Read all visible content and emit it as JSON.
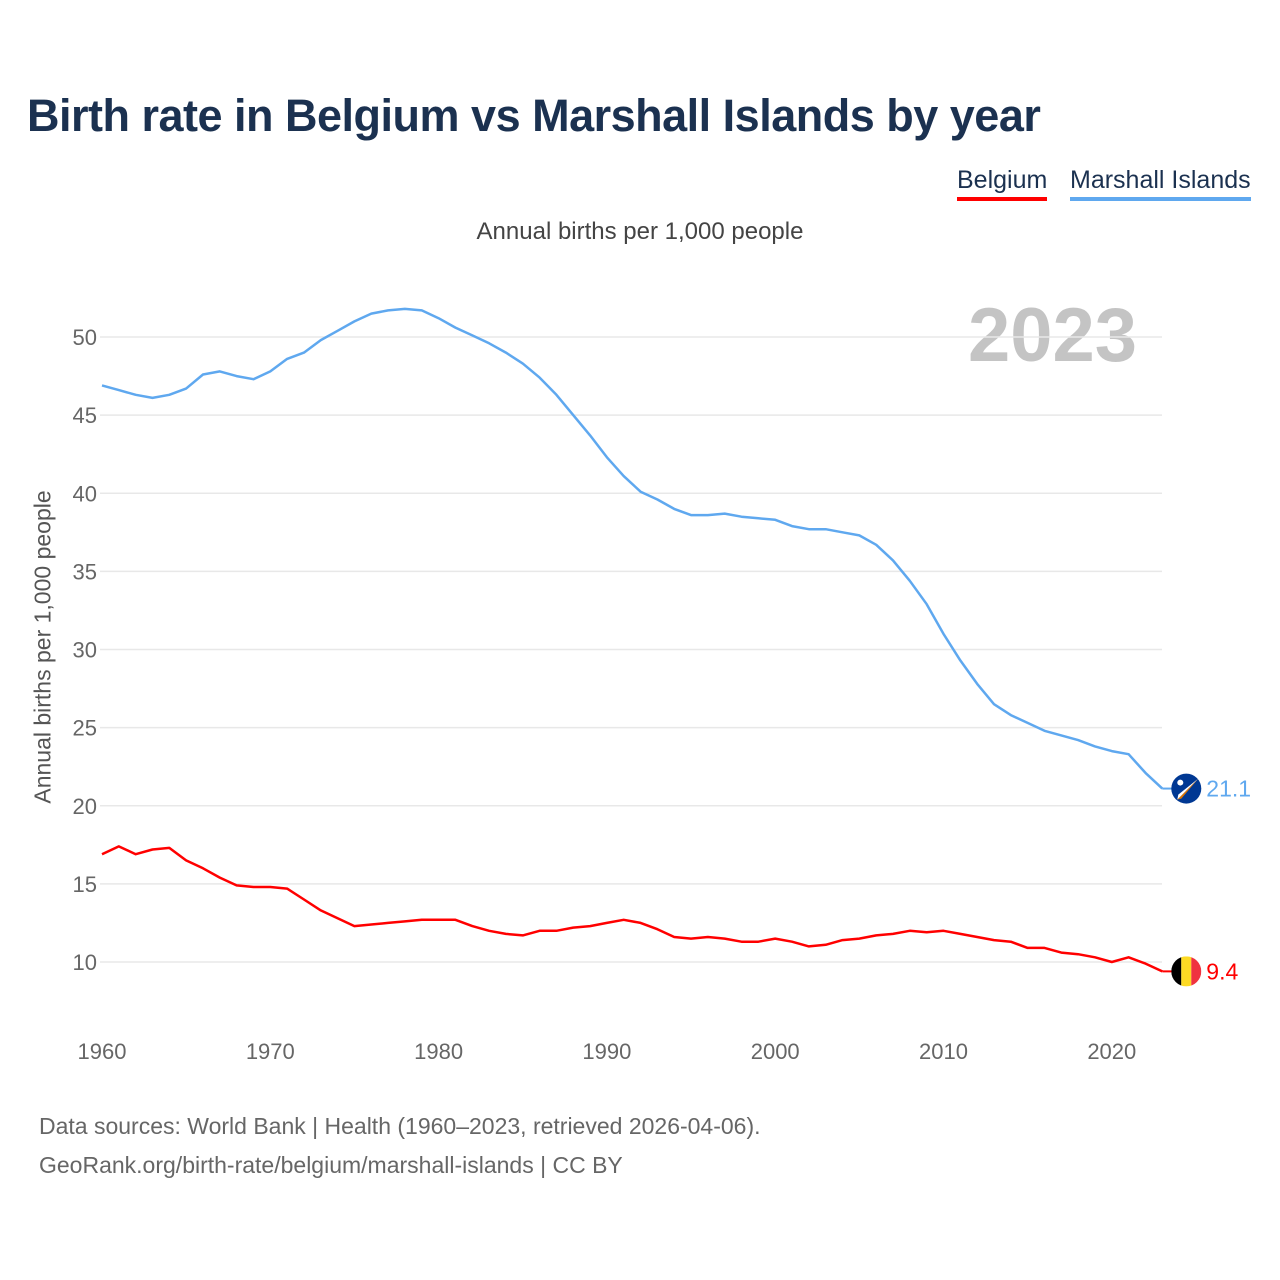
{
  "title": "Birth rate in Belgium vs Marshall Islands by year",
  "legend": [
    {
      "label": "Belgium",
      "color": "#ff0000"
    },
    {
      "label": "Marshall Islands",
      "color": "#5fa8ef"
    }
  ],
  "year_label": "2023",
  "footer": {
    "line1": "Data sources: World Bank | Health (1960–2023, retrieved 2026-04-06).",
    "line2": "GeoRank.org/birth-rate/belgium/marshall-islands | CC BY"
  },
  "chart_data": {
    "type": "line",
    "title": "Birth rate in Belgium vs Marshall Islands by year",
    "subtitle": "Annual births per 1,000 people",
    "xlabel": "",
    "ylabel": "Annual births per 1,000 people",
    "xlim": [
      1960,
      2023
    ],
    "ylim": [
      7,
      53
    ],
    "xticks": [
      1960,
      1970,
      1980,
      1990,
      2000,
      2010,
      2020
    ],
    "yticks": [
      10,
      15,
      20,
      25,
      30,
      35,
      40,
      45,
      50
    ],
    "grid": true,
    "legend_position": "top-right",
    "x_start": 1960,
    "series": [
      {
        "name": "Belgium",
        "color": "#ff0000",
        "end_label": "9.4",
        "flag": "belgium-flag",
        "values": [
          16.9,
          17.4,
          16.9,
          17.2,
          17.3,
          16.5,
          16.0,
          15.4,
          14.9,
          14.8,
          14.8,
          14.7,
          14.0,
          13.3,
          12.8,
          12.3,
          12.4,
          12.5,
          12.6,
          12.7,
          12.7,
          12.7,
          12.3,
          12.0,
          11.8,
          11.7,
          12.0,
          12.0,
          12.2,
          12.3,
          12.5,
          12.7,
          12.5,
          12.1,
          11.6,
          11.5,
          11.6,
          11.5,
          11.3,
          11.3,
          11.5,
          11.3,
          11.0,
          11.1,
          11.4,
          11.5,
          11.7,
          11.8,
          12.0,
          11.9,
          12.0,
          11.8,
          11.6,
          11.4,
          11.3,
          10.9,
          10.9,
          10.6,
          10.5,
          10.3,
          10.0,
          10.3,
          9.9,
          9.4
        ]
      },
      {
        "name": "Marshall Islands",
        "color": "#5fa8ef",
        "end_label": "21.1",
        "flag": "marshall-islands-flag",
        "values": [
          46.9,
          46.6,
          46.3,
          46.1,
          46.3,
          46.7,
          47.6,
          47.8,
          47.5,
          47.3,
          47.8,
          48.6,
          49.0,
          49.8,
          50.4,
          51.0,
          51.5,
          51.7,
          51.8,
          51.7,
          51.2,
          50.6,
          50.1,
          49.6,
          49.0,
          48.3,
          47.4,
          46.3,
          45.0,
          43.7,
          42.3,
          41.1,
          40.1,
          39.6,
          39.0,
          38.6,
          38.6,
          38.7,
          38.5,
          38.4,
          38.3,
          37.9,
          37.7,
          37.7,
          37.5,
          37.3,
          36.7,
          35.7,
          34.4,
          32.9,
          31.0,
          29.3,
          27.8,
          26.5,
          25.8,
          25.3,
          24.8,
          24.5,
          24.2,
          23.8,
          23.5,
          23.3,
          22.1,
          21.1
        ]
      }
    ]
  }
}
